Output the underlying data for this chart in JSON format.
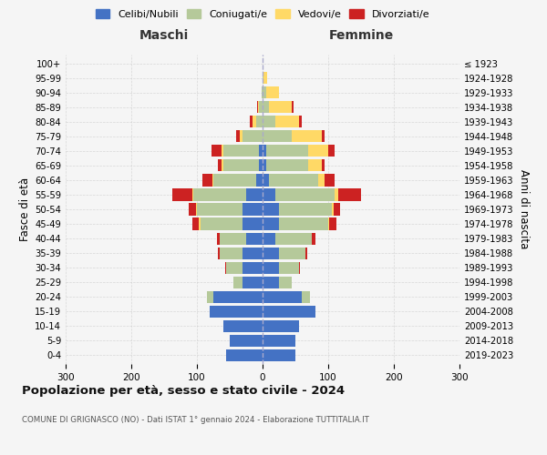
{
  "age_groups": [
    "0-4",
    "5-9",
    "10-14",
    "15-19",
    "20-24",
    "25-29",
    "30-34",
    "35-39",
    "40-44",
    "45-49",
    "50-54",
    "55-59",
    "60-64",
    "65-69",
    "70-74",
    "75-79",
    "80-84",
    "85-89",
    "90-94",
    "95-99",
    "100+"
  ],
  "birth_years": [
    "2019-2023",
    "2014-2018",
    "2009-2013",
    "2004-2008",
    "1999-2003",
    "1994-1998",
    "1989-1993",
    "1984-1988",
    "1979-1983",
    "1974-1978",
    "1969-1973",
    "1964-1968",
    "1959-1963",
    "1954-1958",
    "1949-1953",
    "1944-1948",
    "1939-1943",
    "1934-1938",
    "1929-1933",
    "1924-1928",
    "≤ 1923"
  ],
  "maschi": {
    "celibi": [
      55,
      50,
      60,
      80,
      75,
      30,
      30,
      30,
      25,
      30,
      30,
      25,
      10,
      5,
      5,
      0,
      0,
      0,
      0,
      0,
      0
    ],
    "coniugati": [
      0,
      0,
      0,
      0,
      10,
      15,
      25,
      35,
      40,
      65,
      70,
      80,
      65,
      55,
      55,
      30,
      10,
      5,
      2,
      0,
      0
    ],
    "vedovi": [
      0,
      0,
      0,
      0,
      0,
      0,
      0,
      0,
      0,
      2,
      2,
      2,
      2,
      3,
      3,
      5,
      5,
      2,
      0,
      0,
      0
    ],
    "divorziati": [
      0,
      0,
      0,
      0,
      0,
      0,
      2,
      3,
      5,
      10,
      10,
      30,
      15,
      5,
      15,
      5,
      4,
      2,
      0,
      0,
      0
    ]
  },
  "femmine": {
    "nubili": [
      50,
      50,
      55,
      80,
      60,
      25,
      25,
      25,
      20,
      25,
      25,
      20,
      10,
      5,
      5,
      0,
      0,
      0,
      0,
      0,
      0
    ],
    "coniugate": [
      0,
      0,
      0,
      0,
      12,
      20,
      30,
      40,
      55,
      75,
      80,
      90,
      75,
      65,
      65,
      45,
      20,
      10,
      5,
      2,
      0
    ],
    "vedove": [
      0,
      0,
      0,
      0,
      0,
      0,
      0,
      0,
      0,
      2,
      3,
      5,
      10,
      20,
      30,
      45,
      35,
      35,
      20,
      5,
      0
    ],
    "divorziate": [
      0,
      0,
      0,
      0,
      0,
      0,
      2,
      3,
      5,
      10,
      10,
      35,
      15,
      5,
      10,
      5,
      5,
      2,
      0,
      0,
      0
    ]
  },
  "colors": {
    "celibi_nubili": "#4472c4",
    "coniugati_e": "#b5c99a",
    "vedovi_e": "#ffd966",
    "divorziati_e": "#cc2222"
  },
  "title": "Popolazione per età, sesso e stato civile - 2024",
  "subtitle": "COMUNE DI GRIGNASCO (NO) - Dati ISTAT 1° gennaio 2024 - Elaborazione TUTTITALIA.IT",
  "ylabel_left": "Fasce di età",
  "ylabel_right": "Anni di nascita",
  "xlabel_left": "Maschi",
  "xlabel_right": "Femmine",
  "xlim": 300,
  "background_color": "#f5f5f5",
  "grid_color": "#cccccc"
}
